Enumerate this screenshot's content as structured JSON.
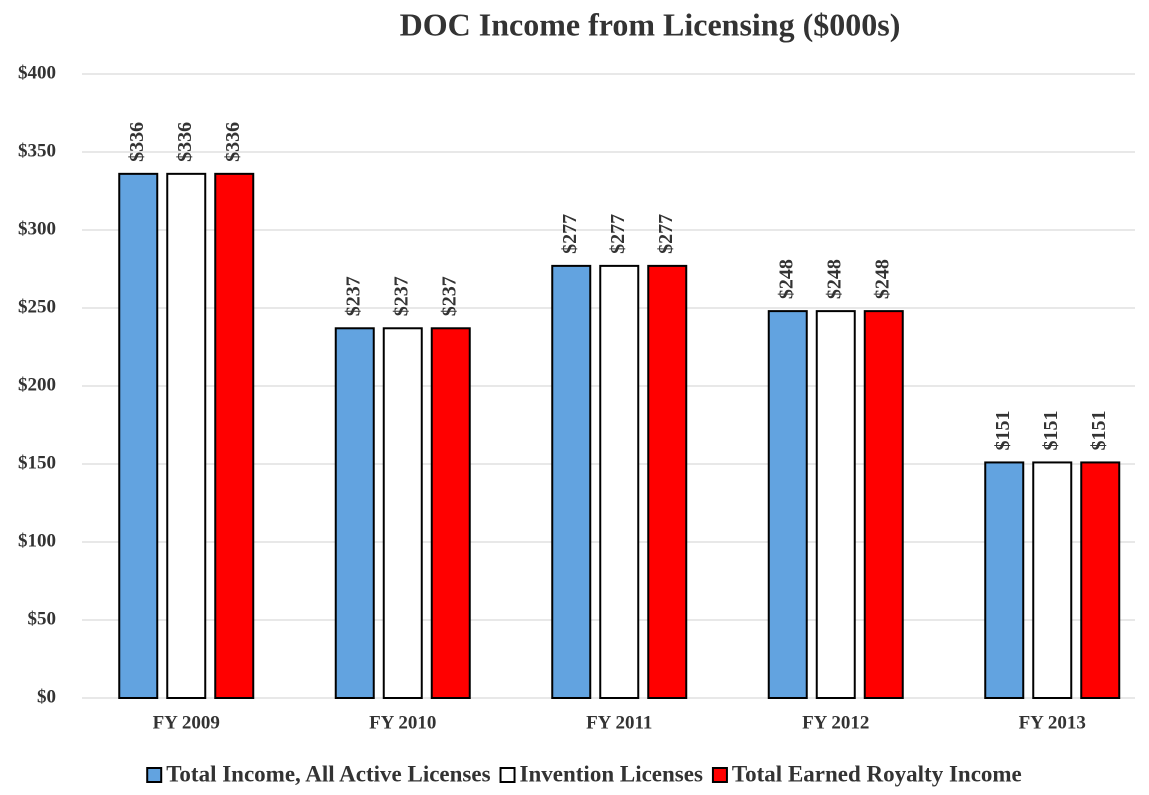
{
  "chart_data": {
    "type": "bar",
    "title": "DOC Income from Licensing ($000s)",
    "categories": [
      "FY 2009",
      "FY 2010",
      "FY 2011",
      "FY 2012",
      "FY 2013"
    ],
    "series": [
      {
        "name": "Total Income, All Active Licenses",
        "color": "#62a3e0",
        "values": [
          336,
          237,
          277,
          248,
          151
        ],
        "value_labels": [
          "$336",
          "$237",
          "$277",
          "$248",
          "$151"
        ]
      },
      {
        "name": "Invention Licenses",
        "color": "#ffffff",
        "values": [
          336,
          237,
          277,
          248,
          151
        ],
        "value_labels": [
          "$336",
          "$237",
          "$277",
          "$248",
          "$151"
        ]
      },
      {
        "name": "Total Earned Royalty Income",
        "color": "#ff0000",
        "values": [
          336,
          237,
          277,
          248,
          151
        ],
        "value_labels": [
          "$336",
          "$237",
          "$277",
          "$248",
          "$151"
        ]
      }
    ],
    "ylim": [
      0,
      400
    ],
    "yticks": [
      {
        "value": 0,
        "label": "$0"
      },
      {
        "value": 50,
        "label": "$50"
      },
      {
        "value": 100,
        "label": "$100"
      },
      {
        "value": 150,
        "label": "$150"
      },
      {
        "value": 200,
        "label": "$200"
      },
      {
        "value": 250,
        "label": "$250"
      },
      {
        "value": 300,
        "label": "$300"
      },
      {
        "value": 350,
        "label": "$350"
      },
      {
        "value": 400,
        "label": "$400"
      }
    ],
    "grid": true,
    "legend": "bottom"
  }
}
